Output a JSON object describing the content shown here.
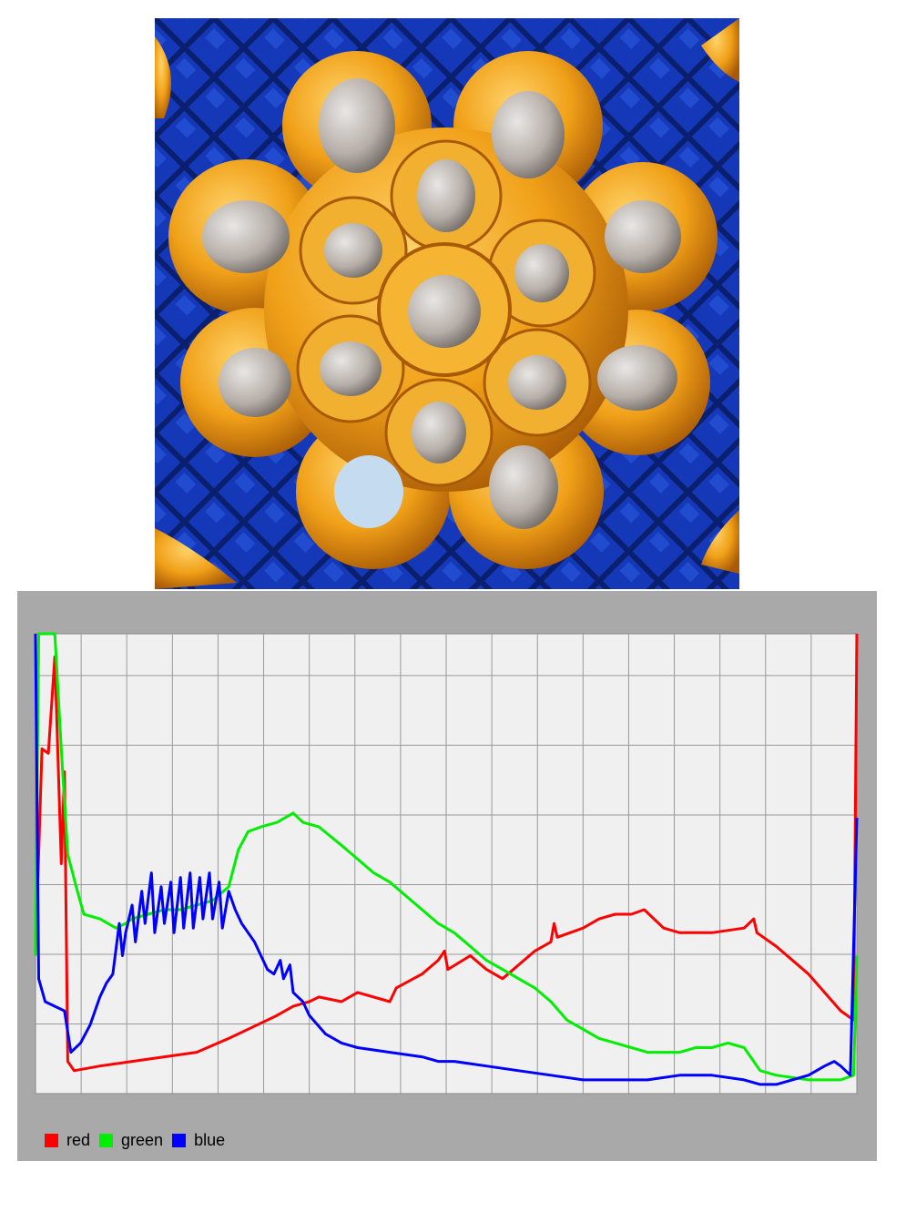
{
  "colors": {
    "red": "#ff0000",
    "green": "#00ee00",
    "blue": "#0000ff",
    "panel": "#a9a9a9",
    "plot_background": "#f0f0f0",
    "grid": "#999999",
    "mosaic_blue": "#0a2fa0",
    "gold": "#e89a10",
    "mirror": "#c8c4c0"
  },
  "photo": {
    "subject-icon": "gold-flower-mosaic-icon"
  },
  "chart_data": {
    "type": "line",
    "title": "",
    "xlabel": "",
    "ylabel": "",
    "xlim": [
      0,
      255
    ],
    "ylim": [
      0,
      1
    ],
    "grid": true,
    "grid_divisions": {
      "x": 18,
      "y": 6.6
    },
    "legend_position": "bottom-left",
    "legend": [
      "red",
      "green",
      "blue"
    ],
    "series": [
      {
        "name": "red",
        "color": "#ff0000",
        "points": [
          [
            0,
            0.3
          ],
          [
            2,
            0.75
          ],
          [
            4,
            0.74
          ],
          [
            6,
            0.95
          ],
          [
            8,
            0.5
          ],
          [
            9,
            0.7
          ],
          [
            10,
            0.07
          ],
          [
            12,
            0.05
          ],
          [
            20,
            0.06
          ],
          [
            30,
            0.07
          ],
          [
            40,
            0.08
          ],
          [
            50,
            0.09
          ],
          [
            60,
            0.12
          ],
          [
            66,
            0.14
          ],
          [
            75,
            0.17
          ],
          [
            80,
            0.19
          ],
          [
            85,
            0.2
          ],
          [
            88,
            0.21
          ],
          [
            95,
            0.2
          ],
          [
            100,
            0.22
          ],
          [
            110,
            0.2
          ],
          [
            112,
            0.23
          ],
          [
            120,
            0.26
          ],
          [
            125,
            0.29
          ],
          [
            127,
            0.31
          ],
          [
            128,
            0.27
          ],
          [
            135,
            0.3
          ],
          [
            140,
            0.27
          ],
          [
            145,
            0.25
          ],
          [
            150,
            0.28
          ],
          [
            155,
            0.31
          ],
          [
            160,
            0.33
          ],
          [
            161,
            0.37
          ],
          [
            162,
            0.34
          ],
          [
            170,
            0.36
          ],
          [
            175,
            0.38
          ],
          [
            180,
            0.39
          ],
          [
            185,
            0.39
          ],
          [
            189,
            0.4
          ],
          [
            192,
            0.38
          ],
          [
            195,
            0.36
          ],
          [
            200,
            0.35
          ],
          [
            210,
            0.35
          ],
          [
            220,
            0.36
          ],
          [
            223,
            0.38
          ],
          [
            224,
            0.35
          ],
          [
            230,
            0.32
          ],
          [
            240,
            0.26
          ],
          [
            250,
            0.18
          ],
          [
            254,
            0.16
          ],
          [
            255,
            1.0
          ]
        ]
      },
      {
        "name": "green",
        "color": "#00ee00",
        "points": [
          [
            0,
            0.3
          ],
          [
            1,
            1.0
          ],
          [
            6,
            1.0
          ],
          [
            8,
            0.75
          ],
          [
            10,
            0.52
          ],
          [
            13,
            0.44
          ],
          [
            15,
            0.39
          ],
          [
            20,
            0.38
          ],
          [
            25,
            0.36
          ],
          [
            28,
            0.37
          ],
          [
            30,
            0.38
          ],
          [
            35,
            0.39
          ],
          [
            40,
            0.4
          ],
          [
            45,
            0.4
          ],
          [
            50,
            0.41
          ],
          [
            55,
            0.42
          ],
          [
            60,
            0.45
          ],
          [
            63,
            0.53
          ],
          [
            66,
            0.57
          ],
          [
            70,
            0.58
          ],
          [
            75,
            0.59
          ],
          [
            80,
            0.61
          ],
          [
            83,
            0.59
          ],
          [
            88,
            0.58
          ],
          [
            95,
            0.54
          ],
          [
            100,
            0.51
          ],
          [
            105,
            0.48
          ],
          [
            110,
            0.46
          ],
          [
            115,
            0.43
          ],
          [
            120,
            0.4
          ],
          [
            125,
            0.37
          ],
          [
            130,
            0.35
          ],
          [
            135,
            0.32
          ],
          [
            140,
            0.29
          ],
          [
            145,
            0.27
          ],
          [
            150,
            0.25
          ],
          [
            155,
            0.23
          ],
          [
            160,
            0.2
          ],
          [
            165,
            0.16
          ],
          [
            170,
            0.14
          ],
          [
            175,
            0.12
          ],
          [
            180,
            0.11
          ],
          [
            185,
            0.1
          ],
          [
            190,
            0.09
          ],
          [
            195,
            0.09
          ],
          [
            200,
            0.09
          ],
          [
            205,
            0.1
          ],
          [
            210,
            0.1
          ],
          [
            215,
            0.11
          ],
          [
            220,
            0.1
          ],
          [
            225,
            0.05
          ],
          [
            230,
            0.04
          ],
          [
            240,
            0.03
          ],
          [
            250,
            0.03
          ],
          [
            254,
            0.04
          ],
          [
            255,
            0.3
          ]
        ]
      },
      {
        "name": "blue",
        "color": "#0000ff",
        "points": [
          [
            0,
            1.0
          ],
          [
            1,
            0.25
          ],
          [
            3,
            0.2
          ],
          [
            6,
            0.19
          ],
          [
            9,
            0.18
          ],
          [
            11,
            0.09
          ],
          [
            14,
            0.11
          ],
          [
            17,
            0.15
          ],
          [
            20,
            0.21
          ],
          [
            22,
            0.24
          ],
          [
            24,
            0.26
          ],
          [
            26,
            0.37
          ],
          [
            27,
            0.3
          ],
          [
            28,
            0.35
          ],
          [
            30,
            0.41
          ],
          [
            31,
            0.33
          ],
          [
            33,
            0.44
          ],
          [
            34,
            0.37
          ],
          [
            36,
            0.48
          ],
          [
            37,
            0.35
          ],
          [
            39,
            0.45
          ],
          [
            40,
            0.37
          ],
          [
            42,
            0.46
          ],
          [
            43,
            0.35
          ],
          [
            45,
            0.47
          ],
          [
            46,
            0.36
          ],
          [
            48,
            0.48
          ],
          [
            49,
            0.36
          ],
          [
            51,
            0.47
          ],
          [
            52,
            0.38
          ],
          [
            54,
            0.48
          ],
          [
            55,
            0.38
          ],
          [
            57,
            0.46
          ],
          [
            58,
            0.36
          ],
          [
            60,
            0.44
          ],
          [
            62,
            0.4
          ],
          [
            64,
            0.37
          ],
          [
            66,
            0.35
          ],
          [
            68,
            0.33
          ],
          [
            70,
            0.3
          ],
          [
            72,
            0.27
          ],
          [
            74,
            0.26
          ],
          [
            76,
            0.29
          ],
          [
            77,
            0.25
          ],
          [
            79,
            0.28
          ],
          [
            80,
            0.22
          ],
          [
            83,
            0.2
          ],
          [
            85,
            0.17
          ],
          [
            90,
            0.13
          ],
          [
            95,
            0.11
          ],
          [
            100,
            0.1
          ],
          [
            110,
            0.09
          ],
          [
            120,
            0.08
          ],
          [
            125,
            0.07
          ],
          [
            130,
            0.07
          ],
          [
            140,
            0.06
          ],
          [
            150,
            0.05
          ],
          [
            160,
            0.04
          ],
          [
            170,
            0.03
          ],
          [
            180,
            0.03
          ],
          [
            190,
            0.03
          ],
          [
            200,
            0.04
          ],
          [
            210,
            0.04
          ],
          [
            220,
            0.03
          ],
          [
            225,
            0.02
          ],
          [
            230,
            0.02
          ],
          [
            240,
            0.04
          ],
          [
            245,
            0.06
          ],
          [
            248,
            0.07
          ],
          [
            250,
            0.06
          ],
          [
            253,
            0.04
          ],
          [
            255,
            0.6
          ]
        ]
      }
    ]
  }
}
